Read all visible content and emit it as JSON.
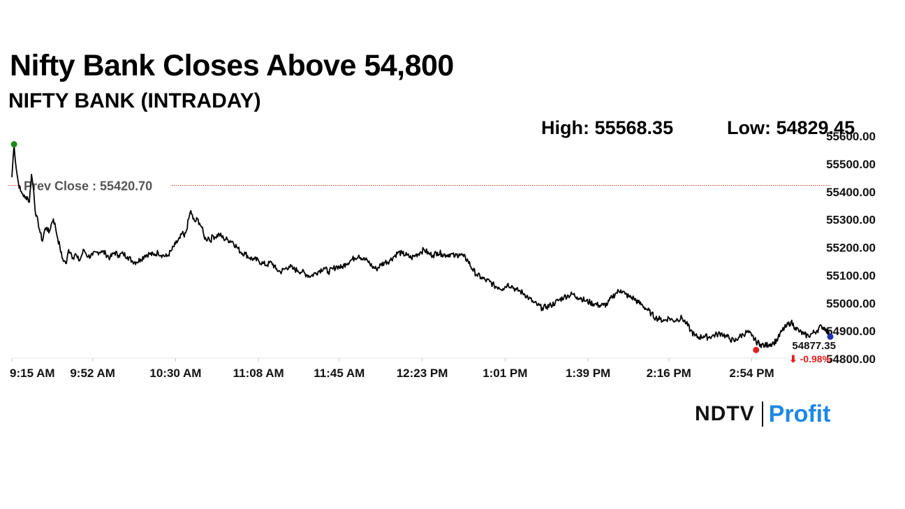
{
  "header": {
    "title": "Nifty Bank Closes Above 54,800",
    "subtitle": "NIFTY BANK (INTRADAY)",
    "high_text": "High: 55568.35",
    "low_text": "Low: 54829.45"
  },
  "brand": {
    "ndtv": "NDTV",
    "profit": "Profit"
  },
  "colors": {
    "line": "#000000",
    "prev_close_line": "#c0392b",
    "high_marker": "#1a8a1a",
    "low_marker": "#e02020",
    "last_marker": "#1f2fb0",
    "change_text": "#e02020",
    "axis_text": "#111111"
  },
  "chart_data": {
    "type": "line",
    "title": "NIFTY BANK (INTRADAY)",
    "ylim": [
      54800,
      55600
    ],
    "y_ticks": [
      54800,
      54900,
      55000,
      55100,
      55200,
      55300,
      55400,
      55500,
      55600
    ],
    "y_tick_labels": [
      "54800.00",
      "54900.00",
      "55000.00",
      "55100.00",
      "55200.00",
      "55300.00",
      "55400.00",
      "55500.00",
      "55600.00"
    ],
    "x_tick_labels": [
      "9:15 AM",
      "9:52 AM",
      "10:30 AM",
      "11:08 AM",
      "11:45 AM",
      "12:23 PM",
      "1:01 PM",
      "1:39 PM",
      "2:16 PM",
      "2:54 PM"
    ],
    "x_tick_minutes": [
      0,
      37,
      75,
      113,
      150,
      188,
      226,
      264,
      301,
      339
    ],
    "session_minutes": 375,
    "prev_close": 55420.7,
    "prev_close_label": "Prev Close : 55420.70",
    "high": {
      "minute": 1,
      "value": 55568.35
    },
    "low": {
      "minute": 341,
      "value": 54829.45
    },
    "last": {
      "minute": 375,
      "value": 54877.35,
      "value_label": "54877.35",
      "change_label": "⬇ -0.98%"
    },
    "series": [
      {
        "name": "NIFTY BANK",
        "points": [
          [
            0,
            55450
          ],
          [
            1,
            55568
          ],
          [
            2,
            55480
          ],
          [
            3,
            55430
          ],
          [
            4,
            55400
          ],
          [
            5,
            55390
          ],
          [
            6,
            55375
          ],
          [
            7,
            55380
          ],
          [
            8,
            55360
          ],
          [
            9,
            55460
          ],
          [
            10,
            55400
          ],
          [
            11,
            55310
          ],
          [
            12,
            55290
          ],
          [
            13,
            55250
          ],
          [
            14,
            55220
          ],
          [
            15,
            55260
          ],
          [
            16,
            55270
          ],
          [
            17,
            55250
          ],
          [
            18,
            55280
          ],
          [
            19,
            55300
          ],
          [
            20,
            55270
          ],
          [
            21,
            55230
          ],
          [
            22,
            55200
          ],
          [
            23,
            55160
          ],
          [
            24,
            55150
          ],
          [
            25,
            55140
          ],
          [
            26,
            55190
          ],
          [
            27,
            55180
          ],
          [
            28,
            55160
          ],
          [
            29,
            55175
          ],
          [
            30,
            55160
          ],
          [
            31,
            55150
          ],
          [
            32,
            55170
          ],
          [
            33,
            55190
          ],
          [
            34,
            55175
          ],
          [
            35,
            55165
          ],
          [
            37,
            55170
          ],
          [
            39,
            55180
          ],
          [
            41,
            55185
          ],
          [
            43,
            55175
          ],
          [
            45,
            55160
          ],
          [
            47,
            55180
          ],
          [
            49,
            55170
          ],
          [
            51,
            55175
          ],
          [
            53,
            55165
          ],
          [
            55,
            55150
          ],
          [
            57,
            55145
          ],
          [
            59,
            55155
          ],
          [
            61,
            55170
          ],
          [
            63,
            55175
          ],
          [
            65,
            55170
          ],
          [
            67,
            55180
          ],
          [
            69,
            55170
          ],
          [
            71,
            55165
          ],
          [
            73,
            55185
          ],
          [
            75,
            55210
          ],
          [
            77,
            55230
          ],
          [
            78,
            55250
          ],
          [
            79,
            55235
          ],
          [
            80,
            55260
          ],
          [
            81,
            55300
          ],
          [
            82,
            55330
          ],
          [
            83,
            55300
          ],
          [
            84,
            55290
          ],
          [
            85,
            55300
          ],
          [
            86,
            55285
          ],
          [
            87,
            55270
          ],
          [
            88,
            55240
          ],
          [
            89,
            55225
          ],
          [
            90,
            55235
          ],
          [
            91,
            55220
          ],
          [
            92,
            55240
          ],
          [
            93,
            55235
          ],
          [
            95,
            55245
          ],
          [
            97,
            55230
          ],
          [
            99,
            55225
          ],
          [
            101,
            55220
          ],
          [
            103,
            55200
          ],
          [
            105,
            55180
          ],
          [
            107,
            55175
          ],
          [
            109,
            55160
          ],
          [
            111,
            55155
          ],
          [
            113,
            55150
          ],
          [
            115,
            55140
          ],
          [
            117,
            55135
          ],
          [
            119,
            55145
          ],
          [
            121,
            55120
          ],
          [
            123,
            55110
          ],
          [
            125,
            55120
          ],
          [
            127,
            55130
          ],
          [
            129,
            55120
          ],
          [
            131,
            55115
          ],
          [
            133,
            55110
          ],
          [
            135,
            55100
          ],
          [
            137,
            55095
          ],
          [
            139,
            55105
          ],
          [
            141,
            55115
          ],
          [
            143,
            55125
          ],
          [
            145,
            55110
          ],
          [
            147,
            55120
          ],
          [
            149,
            55130
          ],
          [
            151,
            55125
          ],
          [
            153,
            55140
          ],
          [
            155,
            55150
          ],
          [
            157,
            55160
          ],
          [
            159,
            55170
          ],
          [
            161,
            55155
          ],
          [
            163,
            55150
          ],
          [
            165,
            55130
          ],
          [
            167,
            55120
          ],
          [
            169,
            55135
          ],
          [
            171,
            55145
          ],
          [
            173,
            55150
          ],
          [
            175,
            55165
          ],
          [
            177,
            55180
          ],
          [
            179,
            55175
          ],
          [
            181,
            55170
          ],
          [
            183,
            55160
          ],
          [
            185,
            55170
          ],
          [
            187,
            55180
          ],
          [
            189,
            55190
          ],
          [
            191,
            55175
          ],
          [
            193,
            55170
          ],
          [
            195,
            55180
          ],
          [
            197,
            55175
          ],
          [
            199,
            55170
          ],
          [
            201,
            55175
          ],
          [
            203,
            55165
          ],
          [
            205,
            55175
          ],
          [
            207,
            55165
          ],
          [
            209,
            55150
          ],
          [
            211,
            55120
          ],
          [
            213,
            55100
          ],
          [
            215,
            55090
          ],
          [
            217,
            55080
          ],
          [
            219,
            55075
          ],
          [
            221,
            55060
          ],
          [
            223,
            55055
          ],
          [
            225,
            55050
          ],
          [
            227,
            55065
          ],
          [
            229,
            55060
          ],
          [
            231,
            55045
          ],
          [
            233,
            55040
          ],
          [
            235,
            55030
          ],
          [
            237,
            55015
          ],
          [
            239,
            55000
          ],
          [
            241,
            54990
          ],
          [
            243,
            54980
          ],
          [
            245,
            54985
          ],
          [
            247,
            54990
          ],
          [
            249,
            55000
          ],
          [
            251,
            55010
          ],
          [
            253,
            55020
          ],
          [
            255,
            55025
          ],
          [
            257,
            55030
          ],
          [
            259,
            55020
          ],
          [
            261,
            55015
          ],
          [
            263,
            55005
          ],
          [
            265,
            55000
          ],
          [
            267,
            54995
          ],
          [
            269,
            54990
          ],
          [
            271,
            54990
          ],
          [
            273,
            54995
          ],
          [
            275,
            55020
          ],
          [
            277,
            55035
          ],
          [
            279,
            55045
          ],
          [
            281,
            55030
          ],
          [
            283,
            55020
          ],
          [
            285,
            55015
          ],
          [
            287,
            55000
          ],
          [
            289,
            54990
          ],
          [
            291,
            54975
          ],
          [
            293,
            54960
          ],
          [
            295,
            54945
          ],
          [
            297,
            54940
          ],
          [
            299,
            54935
          ],
          [
            301,
            54945
          ],
          [
            303,
            54935
          ],
          [
            305,
            54940
          ],
          [
            307,
            54945
          ],
          [
            309,
            54925
          ],
          [
            311,
            54900
          ],
          [
            313,
            54880
          ],
          [
            315,
            54875
          ],
          [
            317,
            54880
          ],
          [
            319,
            54875
          ],
          [
            321,
            54880
          ],
          [
            323,
            54885
          ],
          [
            325,
            54890
          ],
          [
            327,
            54880
          ],
          [
            329,
            54870
          ],
          [
            331,
            54860
          ],
          [
            333,
            54875
          ],
          [
            335,
            54885
          ],
          [
            337,
            54895
          ],
          [
            339,
            54880
          ],
          [
            341,
            54860
          ],
          [
            343,
            54850
          ],
          [
            345,
            54845
          ],
          [
            347,
            54850
          ],
          [
            349,
            54855
          ],
          [
            351,
            54870
          ],
          [
            353,
            54900
          ],
          [
            355,
            54915
          ],
          [
            357,
            54930
          ],
          [
            359,
            54910
          ],
          [
            361,
            54895
          ],
          [
            363,
            54885
          ],
          [
            365,
            54880
          ],
          [
            367,
            54890
          ],
          [
            369,
            54900
          ],
          [
            371,
            54915
          ],
          [
            373,
            54905
          ],
          [
            375,
            54877
          ]
        ]
      }
    ]
  }
}
